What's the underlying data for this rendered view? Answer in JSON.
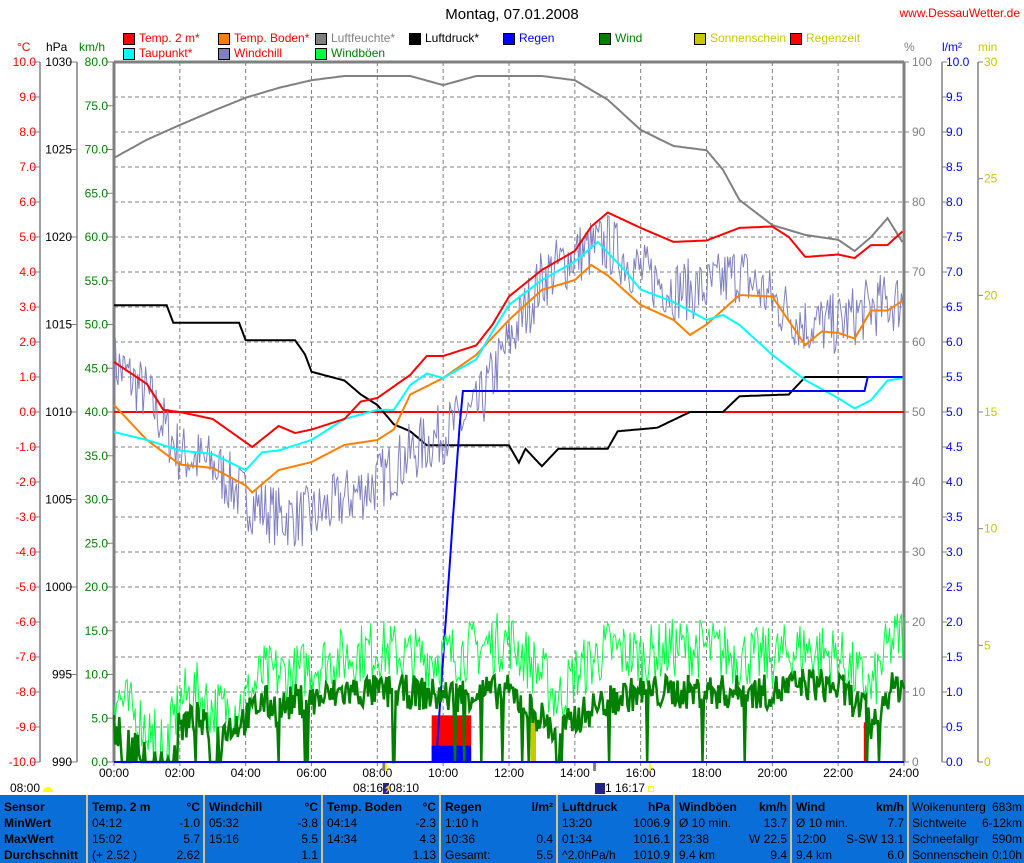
{
  "header": {
    "title": "Montag, 07.01.2008",
    "site": "www.DessauWetter.de"
  },
  "legend": [
    {
      "label": "Temp. 2 m*",
      "color": "#ff0000",
      "text_color": "#ff0000"
    },
    {
      "label": "Taupunkt*",
      "color": "#00ffff",
      "text_color": "#ff0000"
    },
    {
      "label": "Temp. Boden*",
      "color": "#ff8000",
      "text_color": "#ff0000"
    },
    {
      "label": "Windchill",
      "color": "#8080c0",
      "text_color": "#ff0000"
    },
    {
      "label": "Luftfeuchte*",
      "color": "#808080",
      "text_color": "#808080"
    },
    {
      "label": "Windböen",
      "color": "#00ff40",
      "text_color": "#008000"
    },
    {
      "label": "Luftdruck*",
      "color": "#000000",
      "text_color": "#000000"
    },
    {
      "label": "Regen",
      "color": "#0000ff",
      "text_color": "#0000ff"
    },
    {
      "label": "Wind",
      "color": "#008000",
      "text_color": "#008000"
    },
    {
      "label": "Sonnenschein",
      "color": "#c8c800",
      "text_color": "#c8c800"
    },
    {
      "label": "Regenzeit",
      "color": "#ff0000",
      "text_color": "#c8c800"
    }
  ],
  "units": {
    "c": "°C",
    "hpa": "hPa",
    "kmh": "km/h",
    "pct": "%",
    "lm2": "l/m²",
    "min": "min"
  },
  "chart_data": {
    "type": "line",
    "title": "Montag, 07.01.2008",
    "xlim": [
      0,
      24
    ],
    "x_ticks": [
      "00:00",
      "02:00",
      "04:00",
      "06:00",
      "08:00",
      "10:00",
      "12:00",
      "14:00",
      "16:00",
      "18:00",
      "20:00",
      "22:00",
      "24:00"
    ],
    "axes": {
      "temp_c": {
        "range": [
          -10,
          10
        ],
        "ticks": [
          "10.0",
          "9.0",
          "8.0",
          "7.0",
          "6.0",
          "5.0",
          "4.0",
          "3.0",
          "2.0",
          "1.0",
          "0.0",
          "-1.0",
          "-2.0",
          "-3.0",
          "-4.0",
          "-5.0",
          "-6.0",
          "-7.0",
          "-8.0",
          "-9.0",
          "-10.0"
        ]
      },
      "pressure_hpa": {
        "range": [
          990,
          1030
        ],
        "ticks": [
          "1030",
          "1025",
          "1020",
          "1015",
          "1010",
          "1005",
          "1000",
          "995",
          "990"
        ]
      },
      "wind_kmh": {
        "range": [
          0,
          80
        ],
        "ticks": [
          "80.0",
          "75.0",
          "70.0",
          "65.0",
          "60.0",
          "55.0",
          "50.0",
          "45.0",
          "40.0",
          "35.0",
          "30.0",
          "25.0",
          "20.0",
          "15.0",
          "10.0",
          "5.0",
          "0.0"
        ]
      },
      "humidity_pct": {
        "range": [
          0,
          100
        ],
        "ticks": [
          "100",
          "90",
          "80",
          "70",
          "60",
          "50",
          "40",
          "30",
          "20",
          "10",
          "0"
        ]
      },
      "rain_lm2": {
        "range": [
          0,
          10
        ],
        "ticks": [
          "10.0",
          "9.5",
          "9.0",
          "8.5",
          "8.0",
          "7.5",
          "7.0",
          "6.5",
          "6.0",
          "5.5",
          "5.0",
          "4.5",
          "4.0",
          "3.5",
          "3.0",
          "2.5",
          "2.0",
          "1.5",
          "1.0",
          "0.5",
          "0.0"
        ]
      },
      "sun_min": {
        "range": [
          0,
          30
        ],
        "ticks": [
          "30",
          "25",
          "20",
          "15",
          "10",
          "5",
          "0"
        ]
      }
    },
    "series": [
      {
        "name": "Luftfeuchte",
        "axis": "humidity_pct",
        "color": "#808080",
        "x": [
          0,
          1,
          2,
          3,
          4,
          5,
          6,
          7,
          8,
          9,
          10,
          11,
          12,
          13,
          14,
          15,
          16,
          17,
          18,
          18.5,
          19,
          20,
          21,
          22,
          22.5,
          23,
          23.5,
          24
        ],
        "y": [
          86.3,
          88.9,
          91,
          93,
          94.9,
          96.3,
          97.4,
          98,
          98,
          98,
          96.7,
          98,
          98,
          98,
          97.4,
          94.6,
          90.3,
          88,
          87.4,
          84.6,
          80.3,
          76.7,
          75.3,
          74.6,
          73,
          75,
          77.7,
          73.9
        ]
      },
      {
        "name": "Luftdruck",
        "axis": "pressure_hpa",
        "color": "#000000",
        "x": [
          0,
          1.6,
          1.8,
          3.8,
          4,
          5.5,
          5.8,
          6,
          7,
          7.5,
          8,
          8.5,
          9,
          9.5,
          12,
          12.3,
          12.5,
          13,
          13.5,
          15,
          15.3,
          16.5,
          17.5,
          18.5,
          19,
          20.5,
          21,
          24
        ],
        "y": [
          1016.1,
          1016.1,
          1015.1,
          1015.1,
          1014.1,
          1014.1,
          1013.3,
          1012.3,
          1011.8,
          1011,
          1010.4,
          1009.3,
          1008.9,
          1008.1,
          1008.1,
          1007.1,
          1007.9,
          1006.9,
          1007.9,
          1007.9,
          1008.9,
          1009.1,
          1010,
          1010,
          1010.9,
          1011,
          1012,
          1012
        ]
      },
      {
        "name": "Windchill",
        "axis": "temp_c",
        "color": "#8080c0",
        "noise": 0.9,
        "x": [
          0,
          1,
          2,
          3,
          4,
          5,
          6,
          7,
          8,
          9,
          10,
          11,
          12,
          13,
          14,
          15,
          16,
          17,
          18,
          19,
          20,
          21,
          22,
          23,
          24
        ],
        "y": [
          1.4,
          0.5,
          -1.2,
          -1.5,
          -2.5,
          -3,
          -3,
          -2.5,
          -2,
          -1.2,
          -0.6,
          0,
          2.0,
          3.8,
          4.5,
          4.8,
          4.0,
          3.5,
          3.5,
          4,
          3.2,
          2.5,
          2.5,
          3,
          3.2
        ]
      },
      {
        "name": "Temp. Boden",
        "axis": "temp_c",
        "color": "#ff8000",
        "x": [
          0,
          1,
          2,
          3,
          4,
          4.2,
          5,
          6,
          7,
          8,
          8.5,
          9,
          10,
          11,
          12,
          13,
          14,
          14.5,
          15,
          16,
          17,
          17.5,
          18,
          19,
          20,
          21,
          21.5,
          22,
          22.5,
          23,
          23.5,
          24
        ],
        "y": [
          0.2,
          -0.8,
          -1.5,
          -1.6,
          -2.1,
          -2.3,
          -1.66,
          -1.43,
          -0.94,
          -0.8,
          -0.5,
          0.5,
          0.97,
          1.63,
          2.63,
          3.49,
          3.77,
          4.2,
          3.9,
          3.06,
          2.63,
          2.2,
          2.5,
          3.34,
          3.3,
          1.91,
          2.3,
          2.26,
          2.1,
          2.9,
          2.9,
          3.2
        ]
      },
      {
        "name": "Taupunkt",
        "axis": "temp_c",
        "color": "#00ffff",
        "x": [
          0,
          1,
          2,
          3,
          4,
          4.5,
          5,
          6,
          7,
          8,
          8.5,
          9,
          9.5,
          10,
          11,
          11.5,
          12,
          13,
          14,
          14.7,
          15.5,
          16,
          17,
          18,
          18.5,
          19,
          20,
          21,
          22,
          22.5,
          23,
          23.5,
          24
        ],
        "y": [
          -0.57,
          -0.8,
          -1.1,
          -1.2,
          -1.66,
          -1.15,
          -1.1,
          -0.8,
          -0.2,
          0.06,
          0.06,
          0.77,
          1.1,
          0.97,
          1.5,
          2.3,
          3.06,
          3.77,
          4.3,
          4.86,
          4.06,
          3.5,
          3.14,
          2.63,
          2.77,
          2.49,
          1.63,
          0.91,
          0.4,
          0.1,
          0.34,
          0.9,
          0.97
        ]
      },
      {
        "name": "Temp. 2 m",
        "axis": "temp_c",
        "color": "#ff0000",
        "x": [
          0,
          1,
          1.5,
          2,
          3,
          4.2,
          5,
          5.5,
          6,
          7,
          7.5,
          8,
          9,
          9.5,
          10,
          11,
          11.5,
          12,
          13,
          14,
          14.5,
          15,
          16,
          17,
          18,
          19,
          20,
          20.5,
          21,
          22,
          22.5,
          23,
          23.5,
          24
        ],
        "y": [
          1.43,
          0.8,
          0.06,
          0,
          -0.2,
          -1.0,
          -0.4,
          -0.6,
          -0.5,
          -0.2,
          0.3,
          0.4,
          1.06,
          1.6,
          1.6,
          1.9,
          2.5,
          3.3,
          4.06,
          4.6,
          5.3,
          5.7,
          5.26,
          4.86,
          4.9,
          5.26,
          5.3,
          5.0,
          4.43,
          4.5,
          4.4,
          4.77,
          4.77,
          5.2
        ]
      },
      {
        "name": "Regen",
        "axis": "rain_lm2",
        "color": "#0000ff",
        "x": [
          0,
          9.75,
          9.8,
          10,
          10.3,
          10.5,
          10.6,
          22.8,
          22.9,
          24
        ],
        "y": [
          0,
          0,
          0.1,
          1.5,
          3.5,
          4.8,
          5.3,
          5.3,
          5.5,
          5.5
        ]
      },
      {
        "name": "Windböen",
        "axis": "wind_kmh",
        "color": "#00ff40",
        "noise": 3.5,
        "x": [
          0,
          0.7,
          1.6,
          2,
          2.5,
          3,
          3.5,
          4,
          4.5,
          5,
          5.5,
          6,
          7,
          8,
          9,
          10,
          11,
          12,
          13,
          13.5,
          14,
          15,
          16,
          17,
          18,
          19,
          20,
          21,
          22,
          22.8,
          23,
          23.5,
          24
        ],
        "y": [
          8,
          5,
          2,
          7,
          8,
          6,
          6,
          7,
          10,
          10,
          10,
          11,
          12,
          13,
          12,
          12,
          13,
          14,
          10,
          7,
          10,
          13,
          12,
          13,
          13,
          12,
          12,
          13,
          12,
          9,
          8,
          13,
          15
        ]
      },
      {
        "name": "Wind",
        "axis": "wind_kmh",
        "color": "#008000",
        "noise": 2.0,
        "x": [
          0,
          0.5,
          1,
          1.5,
          2,
          2.5,
          3,
          3.5,
          4,
          4.5,
          5,
          5.5,
          6,
          7,
          8,
          9,
          10,
          11,
          12,
          13,
          13.5,
          14,
          15,
          16,
          17,
          18,
          19,
          20,
          21,
          22,
          22.8,
          23,
          23.5,
          24
        ],
        "y": [
          4,
          3,
          0,
          0,
          4,
          5,
          3,
          4,
          5,
          7,
          6,
          7,
          7,
          8,
          8,
          8,
          7.5,
          8,
          8,
          5,
          3,
          5,
          7,
          8,
          8,
          8,
          8,
          8,
          9,
          8.5,
          6,
          4,
          8,
          9
        ]
      }
    ],
    "reference_line": {
      "axis": "temp_c",
      "value": 0,
      "color": "#ff0000"
    },
    "bars": [
      {
        "name": "Regenzeit",
        "axis": "sun_min",
        "color": "#ff0000",
        "x": [
          9.65,
          10.85
        ],
        "y": 2
      },
      {
        "name": "Regenzeit",
        "axis": "sun_min",
        "color": "#ff0000",
        "x": [
          22.78,
          22.86
        ],
        "y": 1.7
      },
      {
        "name": "Regenintensität",
        "axis": "sun_min",
        "color": "#0000ff",
        "x": [
          9.65,
          10.85
        ],
        "y": 0.7
      },
      {
        "name": "Sonnenschein",
        "axis": "sun_min",
        "color": "#c8c800",
        "x": [
          12.65,
          12.82
        ],
        "y": 2
      }
    ]
  },
  "markers": {
    "sunrise_label": "08:00",
    "mid_left": "08:16",
    "mid_right": "08:10",
    "moon_label": "1 16:17"
  },
  "table": [
    {
      "head": [
        "Sensor",
        ""
      ],
      "rows": [
        [
          "MinWert",
          ""
        ],
        [
          "MaxWert",
          ""
        ],
        [
          "Durchschnitt",
          ""
        ]
      ],
      "bold_rows": true
    },
    {
      "head": [
        "Temp. 2 m",
        "°C"
      ],
      "rows": [
        [
          "04:12",
          "-1.0"
        ],
        [
          "15:02",
          "5.7"
        ],
        [
          "(+ 2.52 )",
          "2.62"
        ]
      ]
    },
    {
      "head": [
        "Windchill",
        "°C"
      ],
      "rows": [
        [
          "05:32",
          "-3.8"
        ],
        [
          "15:16",
          "5.5"
        ],
        [
          "",
          "1.1"
        ]
      ]
    },
    {
      "head": [
        "Temp. Boden",
        "°C"
      ],
      "rows": [
        [
          "04:14",
          "-2.3"
        ],
        [
          "14:34",
          "4.3"
        ],
        [
          "",
          "1.13"
        ]
      ]
    },
    {
      "head": [
        "Regen",
        "l/m²"
      ],
      "rows": [
        [
          "1:10 h",
          ""
        ],
        [
          "10:36",
          "0.4"
        ],
        [
          "Gesamt:",
          "5.5"
        ]
      ]
    },
    {
      "head": [
        "Luftdruck",
        "hPa"
      ],
      "rows": [
        [
          "13:20",
          "1006.9"
        ],
        [
          "01:34",
          "1016.1"
        ],
        [
          "^2.0hPa/h",
          "1010.9"
        ]
      ]
    },
    {
      "head": [
        "Windböen",
        "km/h"
      ],
      "rows": [
        [
          "Ø 10 min.",
          "13.7"
        ],
        [
          "23:38",
          "W 22.5"
        ],
        [
          "9.4 km",
          "9.4"
        ]
      ]
    },
    {
      "head": [
        "Wind",
        "km/h"
      ],
      "rows": [
        [
          "Ø 10 min.",
          "7.7"
        ],
        [
          "12:00",
          "S-SW 13.1"
        ],
        [
          "9.4 km",
          "6.0"
        ]
      ]
    },
    {
      "head": null,
      "rows": [
        [
          "Wolkenunterg",
          "683m"
        ],
        [
          "Sichtweite",
          "6-12km"
        ],
        [
          "Schneefallgr",
          "590m"
        ],
        [
          "Sonnenschein",
          "0:10h"
        ]
      ]
    }
  ]
}
